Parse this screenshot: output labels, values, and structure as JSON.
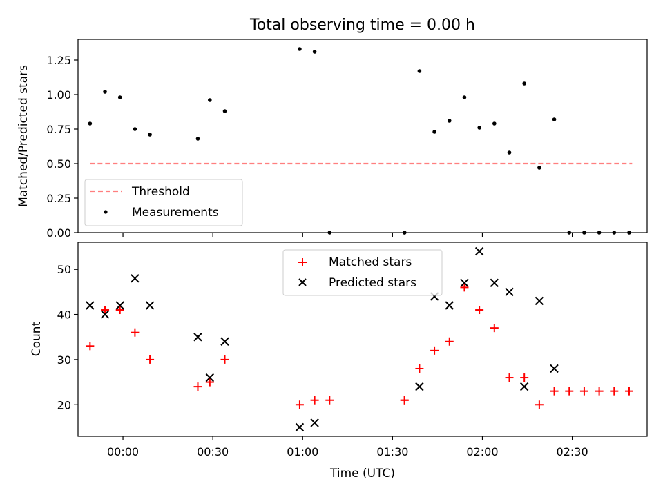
{
  "title": "Total observing time = 0.00 h",
  "colors": {
    "threshold": "#ff7f7f",
    "measurement": "#000000",
    "matched": "#ff0000",
    "predicted": "#000000"
  },
  "chart_data": [
    {
      "type": "scatter",
      "title": "Total observing time = 0.00 h",
      "xlabel": "",
      "ylabel": "Matched/Predicted stars",
      "x_time_domain": [
        "23:45",
        "02:55"
      ],
      "ylim": [
        0,
        1.4
      ],
      "yticks": [
        0.0,
        0.25,
        0.5,
        0.75,
        1.0,
        1.25
      ],
      "ytick_labels": [
        "0.00",
        "0.25",
        "0.50",
        "0.75",
        "1.00",
        "1.25"
      ],
      "xticks": [
        "00:00",
        "00:30",
        "01:00",
        "01:30",
        "02:00",
        "02:30"
      ],
      "legend": {
        "position": "lower-left",
        "entries": [
          {
            "label": "Threshold",
            "style": "dashed-line",
            "color": "#ff7f7f"
          },
          {
            "label": "Measurements",
            "style": "dot",
            "color": "#000000"
          }
        ]
      },
      "threshold": {
        "name": "Threshold",
        "y": 0.5,
        "x_start": "23:49",
        "x_end": "02:50"
      },
      "series": [
        {
          "name": "Measurements",
          "marker": "dot",
          "color": "#000000",
          "points": [
            {
              "x": "23:49",
              "y": 0.79
            },
            {
              "x": "23:54",
              "y": 1.02
            },
            {
              "x": "23:59",
              "y": 0.98
            },
            {
              "x": "00:04",
              "y": 0.75
            },
            {
              "x": "00:09",
              "y": 0.71
            },
            {
              "x": "00:25",
              "y": 0.68
            },
            {
              "x": "00:29",
              "y": 0.96
            },
            {
              "x": "00:34",
              "y": 0.88
            },
            {
              "x": "00:59",
              "y": 1.33
            },
            {
              "x": "01:04",
              "y": 1.31
            },
            {
              "x": "01:09",
              "y": 0.0
            },
            {
              "x": "01:34",
              "y": 0.0
            },
            {
              "x": "01:34",
              "y": 0.0
            },
            {
              "x": "01:39",
              "y": 1.17
            },
            {
              "x": "01:44",
              "y": 0.73
            },
            {
              "x": "01:49",
              "y": 0.81
            },
            {
              "x": "01:54",
              "y": 0.98
            },
            {
              "x": "01:59",
              "y": 0.76
            },
            {
              "x": "02:04",
              "y": 0.79
            },
            {
              "x": "02:09",
              "y": 0.58
            },
            {
              "x": "02:14",
              "y": 1.08
            },
            {
              "x": "02:19",
              "y": 0.47
            },
            {
              "x": "02:24",
              "y": 0.82
            },
            {
              "x": "02:29",
              "y": 0.0
            },
            {
              "x": "02:34",
              "y": 0.0
            },
            {
              "x": "02:39",
              "y": 0.0
            },
            {
              "x": "02:44",
              "y": 0.0
            },
            {
              "x": "02:49",
              "y": 0.0
            }
          ]
        }
      ]
    },
    {
      "type": "scatter",
      "title": "",
      "xlabel": "Time (UTC)",
      "ylabel": "Count",
      "x_time_domain": [
        "23:45",
        "02:55"
      ],
      "ylim": [
        13,
        56
      ],
      "yticks": [
        20,
        30,
        40,
        50
      ],
      "ytick_labels": [
        "20",
        "30",
        "40",
        "50"
      ],
      "xticks": [
        "00:00",
        "00:30",
        "01:00",
        "01:30",
        "02:00",
        "02:30"
      ],
      "legend": {
        "position": "upper-center",
        "entries": [
          {
            "label": "Matched stars",
            "style": "plus",
            "color": "#ff0000"
          },
          {
            "label": "Predicted stars",
            "style": "x",
            "color": "#000000"
          }
        ]
      },
      "series": [
        {
          "name": "Matched stars",
          "marker": "plus",
          "color": "#ff0000",
          "points": [
            {
              "x": "23:49",
              "y": 33
            },
            {
              "x": "23:54",
              "y": 41
            },
            {
              "x": "23:59",
              "y": 41
            },
            {
              "x": "00:04",
              "y": 36
            },
            {
              "x": "00:09",
              "y": 30
            },
            {
              "x": "00:25",
              "y": 24
            },
            {
              "x": "00:29",
              "y": 25
            },
            {
              "x": "00:34",
              "y": 30
            },
            {
              "x": "00:59",
              "y": 20
            },
            {
              "x": "01:04",
              "y": 21
            },
            {
              "x": "01:09",
              "y": 21
            },
            {
              "x": "01:34",
              "y": 21
            },
            {
              "x": "01:34",
              "y": 21
            },
            {
              "x": "01:39",
              "y": 28
            },
            {
              "x": "01:44",
              "y": 32
            },
            {
              "x": "01:49",
              "y": 34
            },
            {
              "x": "01:54",
              "y": 46
            },
            {
              "x": "01:59",
              "y": 41
            },
            {
              "x": "02:04",
              "y": 37
            },
            {
              "x": "02:09",
              "y": 26
            },
            {
              "x": "02:14",
              "y": 26
            },
            {
              "x": "02:19",
              "y": 20
            },
            {
              "x": "02:24",
              "y": 23
            },
            {
              "x": "02:29",
              "y": 23
            },
            {
              "x": "02:34",
              "y": 23
            },
            {
              "x": "02:39",
              "y": 23
            },
            {
              "x": "02:44",
              "y": 23
            },
            {
              "x": "02:49",
              "y": 23
            }
          ]
        },
        {
          "name": "Predicted stars",
          "marker": "x",
          "color": "#000000",
          "points": [
            {
              "x": "23:49",
              "y": 42
            },
            {
              "x": "23:54",
              "y": 40
            },
            {
              "x": "23:59",
              "y": 42
            },
            {
              "x": "00:04",
              "y": 48
            },
            {
              "x": "00:09",
              "y": 42
            },
            {
              "x": "00:25",
              "y": 35
            },
            {
              "x": "00:29",
              "y": 26
            },
            {
              "x": "00:34",
              "y": 34
            },
            {
              "x": "00:59",
              "y": 15
            },
            {
              "x": "01:04",
              "y": 16
            },
            {
              "x": "01:39",
              "y": 24
            },
            {
              "x": "01:44",
              "y": 44
            },
            {
              "x": "01:49",
              "y": 42
            },
            {
              "x": "01:54",
              "y": 47
            },
            {
              "x": "01:59",
              "y": 54
            },
            {
              "x": "02:04",
              "y": 47
            },
            {
              "x": "02:09",
              "y": 45
            },
            {
              "x": "02:14",
              "y": 24
            },
            {
              "x": "02:19",
              "y": 43
            },
            {
              "x": "02:24",
              "y": 28
            }
          ]
        }
      ]
    }
  ]
}
